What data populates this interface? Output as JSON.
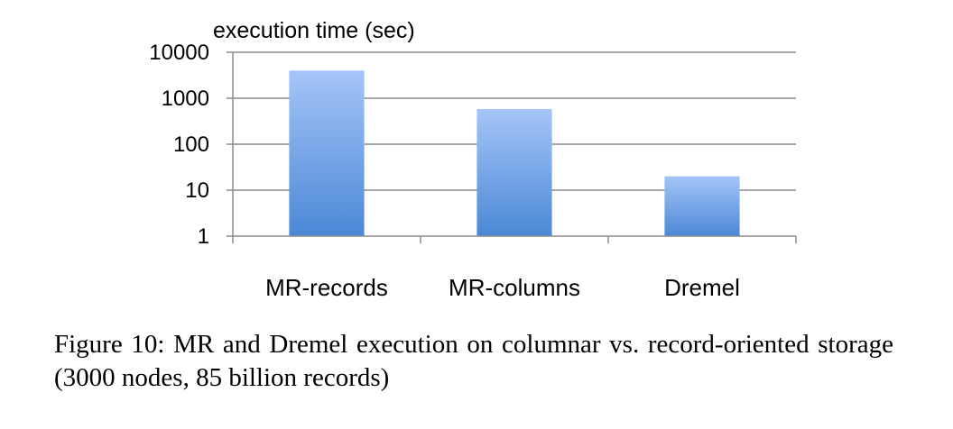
{
  "chart_data": {
    "type": "bar",
    "title": "execution time (sec)",
    "xlabel": "",
    "ylabel": "",
    "yscale": "log",
    "ylim": [
      1,
      10000
    ],
    "yticks": [
      "1",
      "10",
      "100",
      "1000",
      "10000"
    ],
    "grid": true,
    "categories": [
      "MR-records",
      "MR-columns",
      "Dremel"
    ],
    "values": [
      4000,
      580,
      20
    ],
    "bar_color_top": "#a5c5f7",
    "bar_color_bottom": "#4b88d6"
  },
  "caption": {
    "text": "Figure 10: MR and Dremel execution on columnar vs. record-oriented storage (3000 nodes, 85 billion records)"
  }
}
